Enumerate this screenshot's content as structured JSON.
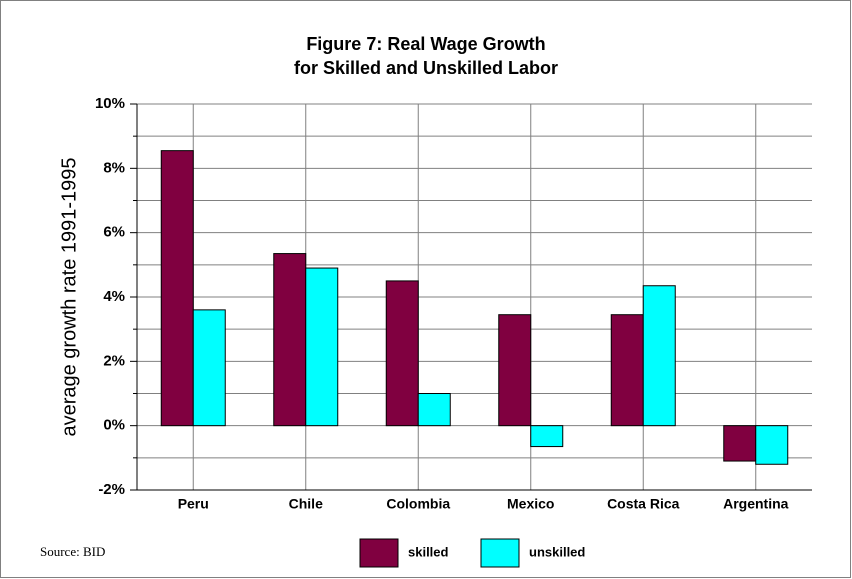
{
  "chart_data": {
    "type": "bar",
    "title": "Figure 7: Real Wage Growth",
    "subtitle": "for Skilled and Unskilled Labor",
    "y_label": "average growth rate 1991-1995",
    "source": "Source: BID",
    "categories": [
      "Peru",
      "Chile",
      "Colombia",
      "Mexico",
      "Costa Rica",
      "Argentina"
    ],
    "series": [
      {
        "name": "skilled",
        "color": "#800040",
        "values": [
          8.55,
          5.35,
          4.5,
          3.45,
          3.45,
          -1.1
        ]
      },
      {
        "name": "unskilled",
        "color": "#00ffff",
        "values": [
          3.6,
          4.9,
          1.0,
          -0.65,
          4.35,
          -1.2
        ]
      }
    ],
    "ylim": [
      -2,
      10
    ],
    "yticks": [
      {
        "value": -2,
        "label": "-2%"
      },
      {
        "value": 0,
        "label": "0%"
      },
      {
        "value": 2,
        "label": "2%"
      },
      {
        "value": 4,
        "label": "4%"
      },
      {
        "value": 6,
        "label": "6%"
      },
      {
        "value": 8,
        "label": "8%"
      },
      {
        "value": 10,
        "label": "10%"
      }
    ],
    "yminorticks": [
      -1,
      1,
      3,
      5,
      7,
      9
    ],
    "grid": true,
    "legend": "bottom"
  }
}
